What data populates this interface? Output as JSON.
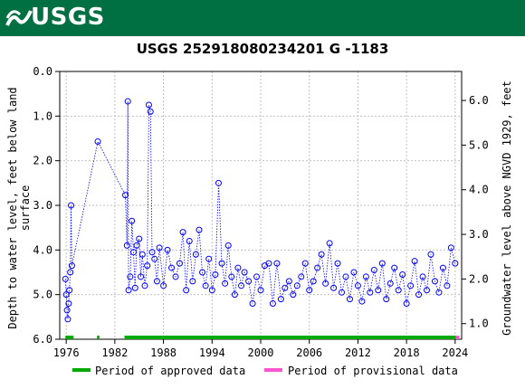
{
  "header": {
    "logo_text": "USGS"
  },
  "chart_data": {
    "type": "scatter",
    "title": "USGS 252918080234201 G  -1183",
    "ylabel_left_line1": "Depth to water level, feet below land",
    "ylabel_left_line2": "surface",
    "ylabel_right": "Groundwater level above NGVD 1929, feet",
    "xlim": [
      1975.2,
      2024.8
    ],
    "ylim_left": [
      6.0,
      0.0
    ],
    "ylim_right": [
      0.65,
      6.65
    ],
    "x_ticks": [
      "1976",
      "1982",
      "1988",
      "1994",
      "2000",
      "2006",
      "2012",
      "2018",
      "2024"
    ],
    "y_left_ticks": [
      "0.0",
      "1.0",
      "2.0",
      "3.0",
      "4.0",
      "5.0",
      "6.0"
    ],
    "y_right_ticks": [
      "1.0",
      "2.0",
      "3.0",
      "4.0",
      "5.0",
      "6.0"
    ],
    "series": [
      {
        "points": [
          [
            1975.9,
            4.65
          ],
          [
            1976.0,
            5.0
          ],
          [
            1976.1,
            5.35
          ],
          [
            1976.2,
            5.55
          ],
          [
            1976.3,
            5.2
          ],
          [
            1976.4,
            4.9
          ],
          [
            1976.5,
            4.5
          ],
          [
            1976.6,
            3.0
          ],
          [
            1976.7,
            4.35
          ],
          [
            1979.9,
            1.57
          ],
          [
            1983.3,
            2.77
          ],
          [
            1983.5,
            3.9
          ],
          [
            1983.6,
            0.67
          ],
          [
            1983.7,
            4.9
          ],
          [
            1983.9,
            4.6
          ],
          [
            1984.1,
            3.35
          ],
          [
            1984.3,
            4.05
          ],
          [
            1984.5,
            4.85
          ],
          [
            1984.7,
            3.9
          ],
          [
            1985.0,
            3.75
          ],
          [
            1985.2,
            4.6
          ],
          [
            1985.4,
            4.1
          ],
          [
            1985.7,
            4.8
          ],
          [
            1986.0,
            4.35
          ],
          [
            1986.2,
            0.75
          ],
          [
            1986.4,
            0.9
          ],
          [
            1986.6,
            4.05
          ],
          [
            1986.9,
            4.2
          ],
          [
            1987.2,
            4.7
          ],
          [
            1987.5,
            3.95
          ],
          [
            1988.0,
            4.8
          ],
          [
            1988.5,
            4.0
          ],
          [
            1989.0,
            4.4
          ],
          [
            1989.5,
            4.6
          ],
          [
            1990.0,
            4.3
          ],
          [
            1990.4,
            3.6
          ],
          [
            1990.8,
            4.9
          ],
          [
            1991.2,
            3.8
          ],
          [
            1991.6,
            4.7
          ],
          [
            1992.0,
            4.1
          ],
          [
            1992.4,
            3.55
          ],
          [
            1992.8,
            4.5
          ],
          [
            1993.2,
            4.8
          ],
          [
            1993.6,
            4.2
          ],
          [
            1994.0,
            4.9
          ],
          [
            1994.4,
            4.55
          ],
          [
            1994.8,
            2.5
          ],
          [
            1995.2,
            4.3
          ],
          [
            1995.6,
            4.75
          ],
          [
            1996.0,
            3.9
          ],
          [
            1996.4,
            4.6
          ],
          [
            1996.8,
            5.0
          ],
          [
            1997.2,
            4.4
          ],
          [
            1997.6,
            4.8
          ],
          [
            1998.0,
            4.5
          ],
          [
            1998.5,
            4.7
          ],
          [
            1999.0,
            5.2
          ],
          [
            1999.5,
            4.6
          ],
          [
            2000.0,
            4.9
          ],
          [
            2000.5,
            4.35
          ],
          [
            2001.0,
            4.3
          ],
          [
            2001.5,
            5.2
          ],
          [
            2002.0,
            4.3
          ],
          [
            2002.5,
            5.1
          ],
          [
            2003.0,
            4.85
          ],
          [
            2003.5,
            4.7
          ],
          [
            2004.0,
            5.0
          ],
          [
            2004.5,
            4.8
          ],
          [
            2005.0,
            4.6
          ],
          [
            2005.5,
            4.3
          ],
          [
            2006.0,
            4.9
          ],
          [
            2006.5,
            4.7
          ],
          [
            2007.0,
            4.4
          ],
          [
            2007.5,
            4.1
          ],
          [
            2008.0,
            4.75
          ],
          [
            2008.5,
            3.85
          ],
          [
            2009.0,
            4.85
          ],
          [
            2009.5,
            4.3
          ],
          [
            2010.0,
            4.95
          ],
          [
            2010.5,
            4.6
          ],
          [
            2011.0,
            5.1
          ],
          [
            2011.5,
            4.5
          ],
          [
            2012.0,
            4.8
          ],
          [
            2012.5,
            5.15
          ],
          [
            2013.0,
            4.6
          ],
          [
            2013.5,
            4.95
          ],
          [
            2014.0,
            4.45
          ],
          [
            2014.5,
            4.9
          ],
          [
            2015.0,
            4.3
          ],
          [
            2015.5,
            5.1
          ],
          [
            2016.0,
            4.75
          ],
          [
            2016.5,
            4.4
          ],
          [
            2017.0,
            4.9
          ],
          [
            2017.5,
            4.55
          ],
          [
            2018.0,
            5.2
          ],
          [
            2018.5,
            4.8
          ],
          [
            2019.0,
            4.25
          ],
          [
            2019.5,
            5.0
          ],
          [
            2020.0,
            4.6
          ],
          [
            2020.5,
            4.9
          ],
          [
            2021.0,
            4.1
          ],
          [
            2021.5,
            4.7
          ],
          [
            2022.0,
            4.95
          ],
          [
            2022.5,
            4.4
          ],
          [
            2023.0,
            4.8
          ],
          [
            2023.5,
            3.95
          ],
          [
            2024.0,
            4.3
          ]
        ]
      }
    ],
    "bar_segments": [
      {
        "status": "approved",
        "from": 1975.9,
        "to": 1976.9
      },
      {
        "status": "approved",
        "from": 1979.8,
        "to": 1980.1
      },
      {
        "status": "approved",
        "from": 1983.2,
        "to": 2024.1
      },
      {
        "status": "provisional",
        "from": 2024.1,
        "to": 2024.5
      }
    ],
    "legend": {
      "approved_label": "Period of approved data",
      "provisional_label": "Period of provisional data"
    },
    "colors": {
      "points": "#0000ff",
      "approved": "#00aa00",
      "provisional": "#ff55cc",
      "grid": "#c0c0c0",
      "banner": "#006f41"
    }
  }
}
